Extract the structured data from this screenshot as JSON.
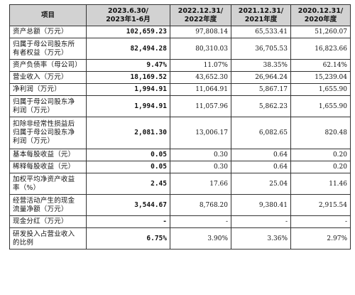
{
  "table": {
    "headers": [
      [
        "项目"
      ],
      [
        "2023.6.30/",
        "2023年1-6月"
      ],
      [
        "2022.12.31/",
        "2022年度"
      ],
      [
        "2021.12.31/",
        "2021年度"
      ],
      [
        "2020.12.31/",
        "2020年度"
      ]
    ],
    "rows": [
      {
        "label": [
          "资产总额（万元）"
        ],
        "values": [
          "102,659.23",
          "97,808.14",
          "65,533.41",
          "51,260.07"
        ]
      },
      {
        "label": [
          "归属于母公司股东所",
          "有者权益（万元）"
        ],
        "values": [
          "82,494.28",
          "80,310.03",
          "36,705.53",
          "16,823.66"
        ]
      },
      {
        "label": [
          "资产负债率（母公司）"
        ],
        "values": [
          "9.47%",
          "11.07%",
          "38.35%",
          "62.14%"
        ]
      },
      {
        "label": [
          "营业收入（万元）"
        ],
        "values": [
          "18,169.52",
          "43,652.30",
          "26,964.24",
          "15,239.04"
        ]
      },
      {
        "label": [
          "净利润（万元）"
        ],
        "values": [
          "1,994.91",
          "11,064.91",
          "5,867.17",
          "1,655.90"
        ]
      },
      {
        "label": [
          "归属于母公司股东净",
          "利润（万元）"
        ],
        "values": [
          "1,994.91",
          "11,057.96",
          "5,862.23",
          "1,655.90"
        ]
      },
      {
        "label": [
          "扣除非经常性损益后",
          "归属于母公司股东净",
          "利润（万元）"
        ],
        "values": [
          "2,081.30",
          "13,006.17",
          "6,082.65",
          "820.48"
        ]
      },
      {
        "label": [
          "基本每股收益（元）"
        ],
        "values": [
          "0.05",
          "0.30",
          "0.64",
          "0.20"
        ]
      },
      {
        "label": [
          "稀释每股收益（元）"
        ],
        "values": [
          "0.05",
          "0.30",
          "0.64",
          "0.20"
        ]
      },
      {
        "label": [
          "加权平均净资产收益",
          "率（%）"
        ],
        "values": [
          "2.45",
          "17.66",
          "25.04",
          "11.46"
        ]
      },
      {
        "label": [
          "经营活动产生的现金",
          "流量净额（万元）"
        ],
        "values": [
          "3,544.67",
          "8,768.20",
          "9,380.41",
          "2,915.54"
        ]
      },
      {
        "label": [
          "现金分红（万元）"
        ],
        "values": [
          "-",
          "-",
          "-",
          "-"
        ]
      },
      {
        "label": [
          "研发投入占营业收入",
          "的比例"
        ],
        "values": [
          "6.75%",
          "3.90%",
          "3.36%",
          "2.97%"
        ]
      }
    ]
  }
}
